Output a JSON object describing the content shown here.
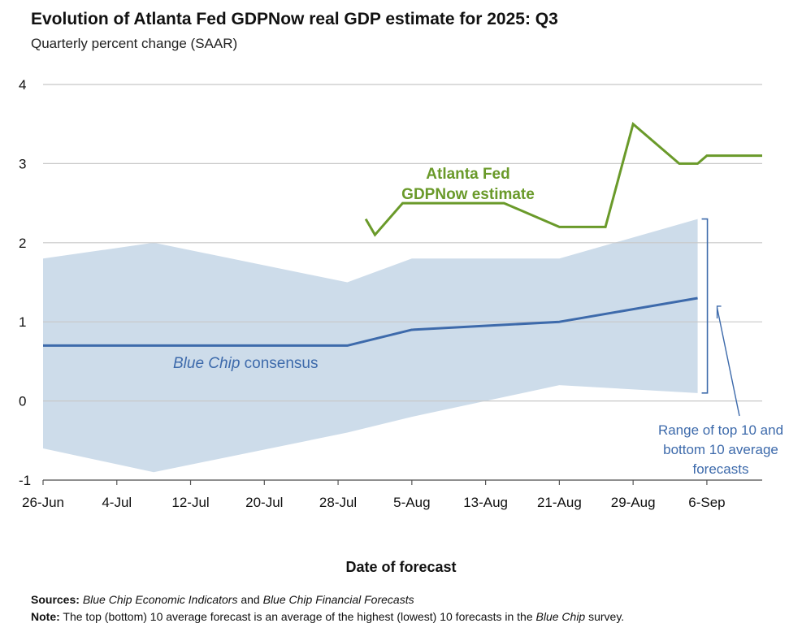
{
  "title": "Evolution of Atlanta Fed GDPNow real GDP estimate for 2025: Q3",
  "subtitle": "Quarterly percent change (SAAR)",
  "colors": {
    "gdpnow": "#6a9a2a",
    "bluechip": "#3d6aab",
    "band": "#cddcea",
    "grid": "#c8c8c8",
    "annotation": "#3d6aab"
  },
  "chart_data": {
    "type": "line",
    "xlabel": "Date of forecast",
    "ylabel": "",
    "ylim": [
      -1,
      4
    ],
    "yticks": [
      "-1",
      "0",
      "1",
      "2",
      "3",
      "4"
    ],
    "xlim": [
      "2025-06-26",
      "2025-09-12"
    ],
    "xticks": [
      {
        "date": "2025-06-26",
        "label": "26-Jun"
      },
      {
        "date": "2025-07-04",
        "label": "4-Jul"
      },
      {
        "date": "2025-07-12",
        "label": "12-Jul"
      },
      {
        "date": "2025-07-20",
        "label": "20-Jul"
      },
      {
        "date": "2025-07-28",
        "label": "28-Jul"
      },
      {
        "date": "2025-08-05",
        "label": "5-Aug"
      },
      {
        "date": "2025-08-13",
        "label": "13-Aug"
      },
      {
        "date": "2025-08-21",
        "label": "21-Aug"
      },
      {
        "date": "2025-08-29",
        "label": "29-Aug"
      },
      {
        "date": "2025-09-06",
        "label": "6-Sep"
      }
    ],
    "grid": true,
    "series": [
      {
        "name": "Atlanta Fed GDPNow estimate",
        "kind": "line",
        "points": [
          {
            "x": "2025-07-31",
            "y": 2.3
          },
          {
            "x": "2025-08-01",
            "y": 2.1
          },
          {
            "x": "2025-08-04",
            "y": 2.5
          },
          {
            "x": "2025-08-15",
            "y": 2.5
          },
          {
            "x": "2025-08-21",
            "y": 2.2
          },
          {
            "x": "2025-08-26",
            "y": 2.2
          },
          {
            "x": "2025-08-29",
            "y": 3.5
          },
          {
            "x": "2025-09-03",
            "y": 3.0
          },
          {
            "x": "2025-09-05",
            "y": 3.0
          },
          {
            "x": "2025-09-06",
            "y": 3.1
          },
          {
            "x": "2025-09-12",
            "y": 3.1
          }
        ]
      },
      {
        "name": "Blue Chip consensus",
        "kind": "line",
        "points": [
          {
            "x": "2025-06-26",
            "y": 0.7
          },
          {
            "x": "2025-07-08",
            "y": 0.7
          },
          {
            "x": "2025-07-29",
            "y": 0.7
          },
          {
            "x": "2025-08-05",
            "y": 0.9
          },
          {
            "x": "2025-08-21",
            "y": 1.0
          },
          {
            "x": "2025-09-05",
            "y": 1.3
          }
        ]
      },
      {
        "name": "Range of top 10 and bottom 10 average forecasts",
        "kind": "band",
        "upper": [
          {
            "x": "2025-06-26",
            "y": 1.8
          },
          {
            "x": "2025-07-08",
            "y": 2.0
          },
          {
            "x": "2025-07-29",
            "y": 1.5
          },
          {
            "x": "2025-08-05",
            "y": 1.8
          },
          {
            "x": "2025-08-21",
            "y": 1.8
          },
          {
            "x": "2025-09-05",
            "y": 2.3
          }
        ],
        "lower": [
          {
            "x": "2025-06-26",
            "y": -0.6
          },
          {
            "x": "2025-07-08",
            "y": -0.9
          },
          {
            "x": "2025-07-29",
            "y": -0.4
          },
          {
            "x": "2025-08-05",
            "y": -0.2
          },
          {
            "x": "2025-08-21",
            "y": 0.2
          },
          {
            "x": "2025-09-05",
            "y": 0.1
          }
        ]
      }
    ],
    "annotations": {
      "gdpnow_line1": "Atlanta Fed",
      "gdpnow_line2": "GDPNow estimate",
      "bluechip_italic": "Blue Chip",
      "bluechip_rest": " consensus",
      "range_line1": "Range of top 10 and",
      "range_line2": "bottom 10 average",
      "range_line3": "forecasts"
    }
  },
  "footer": {
    "sources_label": "Sources:",
    "sources_italic1": "Blue Chip Economic Indicators",
    "sources_mid": " and ",
    "sources_italic2": "Blue Chip Financial Forecasts",
    "note_label": "Note:",
    "note_pre": " The top (bottom) 10 average forecast is an average of the highest (lowest) 10 forecasts in the ",
    "note_italic": "Blue Chip",
    "note_post": " survey."
  }
}
